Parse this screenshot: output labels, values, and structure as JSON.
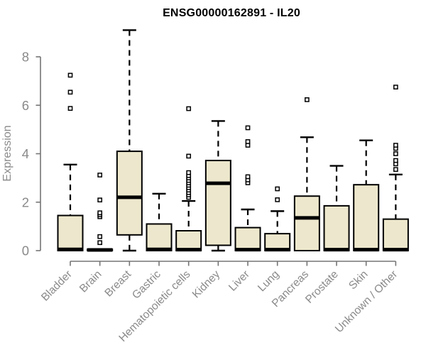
{
  "chart_data": {
    "type": "boxplot",
    "title": "ENSG00000162891 - IL20",
    "xlabel": "",
    "ylabel": "Expression",
    "ylim": [
      0,
      9.2
    ],
    "yticks": [
      0,
      2,
      4,
      6,
      8
    ],
    "grid": false,
    "legend": "none",
    "colors": {
      "box_fill": "#EDE8CD",
      "box_stroke": "#000000",
      "median": "#000000",
      "axis": "#757575",
      "tick_label": "#8a8a8a",
      "title": "#000000",
      "background": "#ffffff"
    },
    "categories": [
      "Bladder",
      "Brain",
      "Breast",
      "Gastric",
      "Hematopoietic cells",
      "Kidney",
      "Liver",
      "Lung",
      "Pancreas",
      "Prostate",
      "Skin",
      "Unknown / Other"
    ],
    "boxes": [
      {
        "category": "Bladder",
        "whisker_low": 0,
        "q1": 0,
        "median": 0.05,
        "q3": 1.45,
        "whisker_high": 3.55,
        "outliers": [
          5.87,
          6.54,
          7.24
        ]
      },
      {
        "category": "Brain",
        "whisker_low": 0,
        "q1": 0,
        "median": 0.03,
        "q3": 0.06,
        "whisker_high": 0.06,
        "outliers": [
          0.33,
          0.58,
          1.4,
          1.48,
          1.56,
          2.09,
          3.12
        ]
      },
      {
        "category": "Breast",
        "whisker_low": 0,
        "q1": 0.65,
        "median": 2.2,
        "q3": 4.1,
        "whisker_high": 9.1,
        "outliers": []
      },
      {
        "category": "Gastric",
        "whisker_low": 0,
        "q1": 0,
        "median": 0.05,
        "q3": 1.1,
        "whisker_high": 2.35,
        "outliers": []
      },
      {
        "category": "Hematopoietic cells",
        "whisker_low": 0,
        "q1": 0,
        "median": 0.04,
        "q3": 0.82,
        "whisker_high": 2.05,
        "outliers": [
          2.2,
          2.3,
          2.4,
          2.5,
          2.6,
          2.7,
          2.8,
          2.9,
          3.0,
          3.1,
          3.22,
          3.9,
          5.86
        ]
      },
      {
        "category": "Kidney",
        "whisker_low": 0,
        "q1": 0.22,
        "median": 2.78,
        "q3": 3.72,
        "whisker_high": 5.35,
        "outliers": []
      },
      {
        "category": "Liver",
        "whisker_low": 0,
        "q1": 0,
        "median": 0.04,
        "q3": 0.95,
        "whisker_high": 1.7,
        "outliers": [
          2.8,
          2.92,
          3.05,
          4.35,
          4.5,
          5.07
        ]
      },
      {
        "category": "Lung",
        "whisker_low": 0,
        "q1": 0,
        "median": 0.04,
        "q3": 0.7,
        "whisker_high": 1.63,
        "outliers": [
          2.1,
          2.55
        ]
      },
      {
        "category": "Pancreas",
        "whisker_low": 0,
        "q1": 0,
        "median": 1.35,
        "q3": 2.25,
        "whisker_high": 4.68,
        "outliers": [
          6.23
        ]
      },
      {
        "category": "Prostate",
        "whisker_low": 0,
        "q1": 0,
        "median": 0.04,
        "q3": 1.85,
        "whisker_high": 3.5,
        "outliers": []
      },
      {
        "category": "Skin",
        "whisker_low": 0,
        "q1": 0,
        "median": 0.04,
        "q3": 2.72,
        "whisker_high": 4.55,
        "outliers": []
      },
      {
        "category": "Unknown / Other",
        "whisker_low": 0,
        "q1": 0,
        "median": 0.04,
        "q3": 1.3,
        "whisker_high": 3.14,
        "outliers": [
          3.35,
          3.58,
          3.72,
          4.0,
          4.22,
          4.35,
          6.75
        ]
      }
    ]
  }
}
